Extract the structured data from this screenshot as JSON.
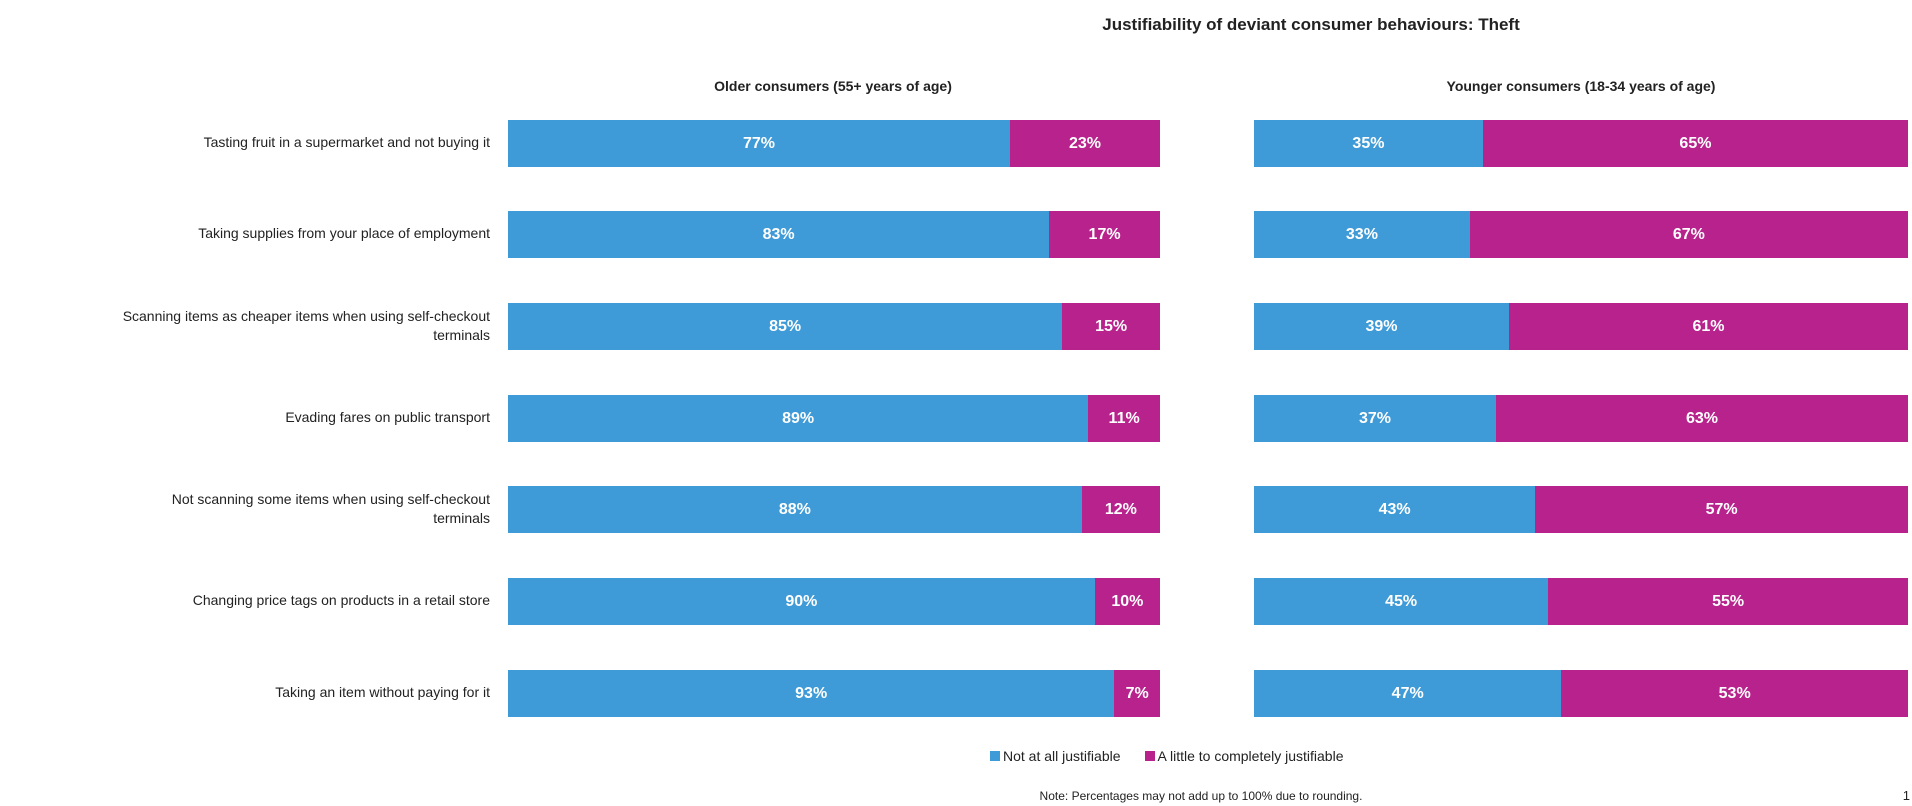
{
  "chart_data": {
    "type": "bar",
    "stacked": true,
    "orientation": "horizontal",
    "title": "Justifiability of deviant consumer behaviours: Theft",
    "categories": [
      "Tasting fruit in a supermarket and not buying it",
      "Taking supplies from your place of employment",
      "Scanning items as cheaper items when using self-checkout terminals",
      "Evading fares on public transport",
      "Not scanning some items when using self-checkout terminals",
      "Changing price tags on products in a retail store",
      "Taking an item without paying for it"
    ],
    "panels": [
      {
        "title": "Older consumers (55+ years of age)",
        "series": [
          {
            "name": "Not at all justifiable",
            "values": [
              77,
              83,
              85,
              89,
              88,
              90,
              93
            ]
          },
          {
            "name": "A little to completely justifiable",
            "values": [
              23,
              17,
              15,
              11,
              12,
              10,
              7
            ]
          }
        ]
      },
      {
        "title": "Younger consumers (18-34 years of age)",
        "series": [
          {
            "name": "Not at all justifiable",
            "values": [
              35,
              33,
              39,
              37,
              43,
              45,
              47
            ]
          },
          {
            "name": "A little to completely justifiable",
            "values": [
              65,
              67,
              61,
              63,
              57,
              55,
              53
            ]
          }
        ]
      }
    ],
    "legend": [
      "Not at all justifiable",
      "A little to completely justifiable"
    ],
    "legend_position": "bottom",
    "colors": [
      "#3f9bd7",
      "#b8228c"
    ],
    "xlim": [
      0,
      100
    ],
    "note": "Note: Percentages may not add up to 100% due to rounding.",
    "page_number": "1"
  }
}
